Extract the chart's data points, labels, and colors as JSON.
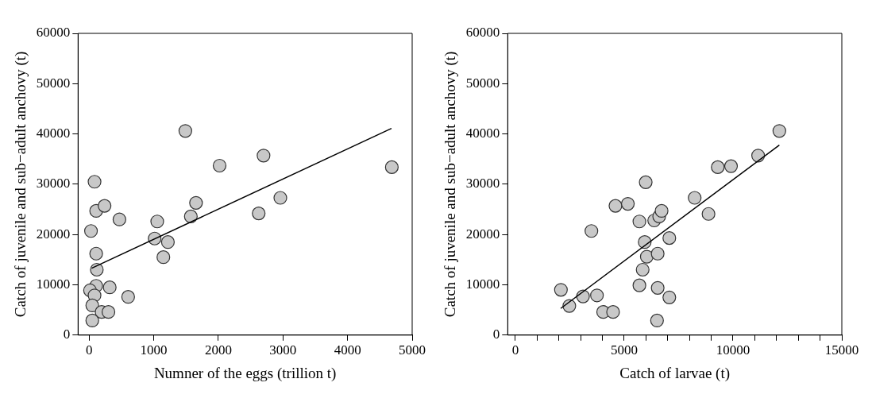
{
  "chart_data": [
    {
      "type": "scatter",
      "xlabel": "Numner of the eggs (trillion t)",
      "ylabel": "Catch of juvenile and sub−adult anchovy (t)",
      "xlim": [
        -170,
        5000
      ],
      "xticks": [
        0,
        1000,
        2000,
        3000,
        4000,
        5000
      ],
      "ylim": [
        0,
        60000
      ],
      "yticks": [
        0,
        10000,
        20000,
        30000,
        40000,
        50000,
        60000
      ],
      "grid": false,
      "marker": "circle",
      "series": [
        {
          "type": "scatter",
          "color": "#c8c8c8",
          "x": [
            85,
            110,
            240,
            470,
            30,
            1055,
            1655,
            1575,
            2625,
            2960,
            1015,
            1220,
            1150,
            110,
            120,
            110,
            15,
            320,
            85,
            605,
            50,
            195,
            300,
            50,
            4685,
            1490,
            2020,
            2700
          ],
          "values": [
            30500,
            24700,
            25700,
            23000,
            20700,
            22600,
            26300,
            23600,
            24200,
            27300,
            19200,
            18500,
            15500,
            16200,
            13000,
            9800,
            8900,
            9500,
            7900,
            7600,
            5900,
            4600,
            4600,
            2900,
            33400,
            40600,
            33700,
            35700
          ]
        },
        {
          "type": "line",
          "color": "#000000",
          "marker": "none",
          "x": [
            40,
            4680
          ],
          "values": [
            13300,
            41100
          ]
        }
      ]
    },
    {
      "type": "scatter",
      "xlabel": "Catch of larvae (t)",
      "ylabel": "Catch of juvenile and sub−adult anchovy (t)",
      "xlim": [
        -350,
        15000
      ],
      "xticks": [
        0,
        {
          "value": 1000,
          "label": null
        },
        {
          "value": 2000,
          "label": null
        },
        {
          "value": 3000,
          "label": null
        },
        {
          "value": 4000,
          "label": null
        },
        5000,
        {
          "value": 6000,
          "label": null
        },
        {
          "value": 7000,
          "label": null
        },
        {
          "value": 8000,
          "label": null
        },
        {
          "value": 9000,
          "label": null
        },
        10000,
        {
          "value": 11000,
          "label": null
        },
        {
          "value": 12000,
          "label": null
        },
        {
          "value": 13000,
          "label": null
        },
        {
          "value": 14000,
          "label": null
        },
        15000
      ],
      "ylim": [
        0,
        60000
      ],
      "yticks": [
        0,
        10000,
        20000,
        30000,
        40000,
        50000,
        60000
      ],
      "grid": false,
      "marker": "circle",
      "series": [
        {
          "type": "scatter",
          "color": "#c8c8c8",
          "x": [
            2095,
            2480,
            3110,
            3750,
            3495,
            4035,
            4490,
            4600,
            5170,
            5700,
            5700,
            5850,
            5945,
            6040,
            6540,
            6540,
            6510,
            7075,
            7075,
            6380,
            6610,
            6720,
            5990,
            8240,
            8875,
            9300,
            9910,
            11155,
            12130
          ],
          "values": [
            9000,
            5800,
            7700,
            7900,
            20700,
            4600,
            4600,
            25700,
            26100,
            22600,
            9900,
            13000,
            18500,
            15600,
            16200,
            9400,
            2900,
            7500,
            19300,
            22800,
            23600,
            24700,
            30400,
            27300,
            24100,
            33400,
            33600,
            35700,
            40600
          ]
        },
        {
          "type": "line",
          "color": "#000000",
          "marker": "none",
          "x": [
            2085,
            12130
          ],
          "values": [
            5300,
            37800
          ]
        }
      ]
    }
  ]
}
